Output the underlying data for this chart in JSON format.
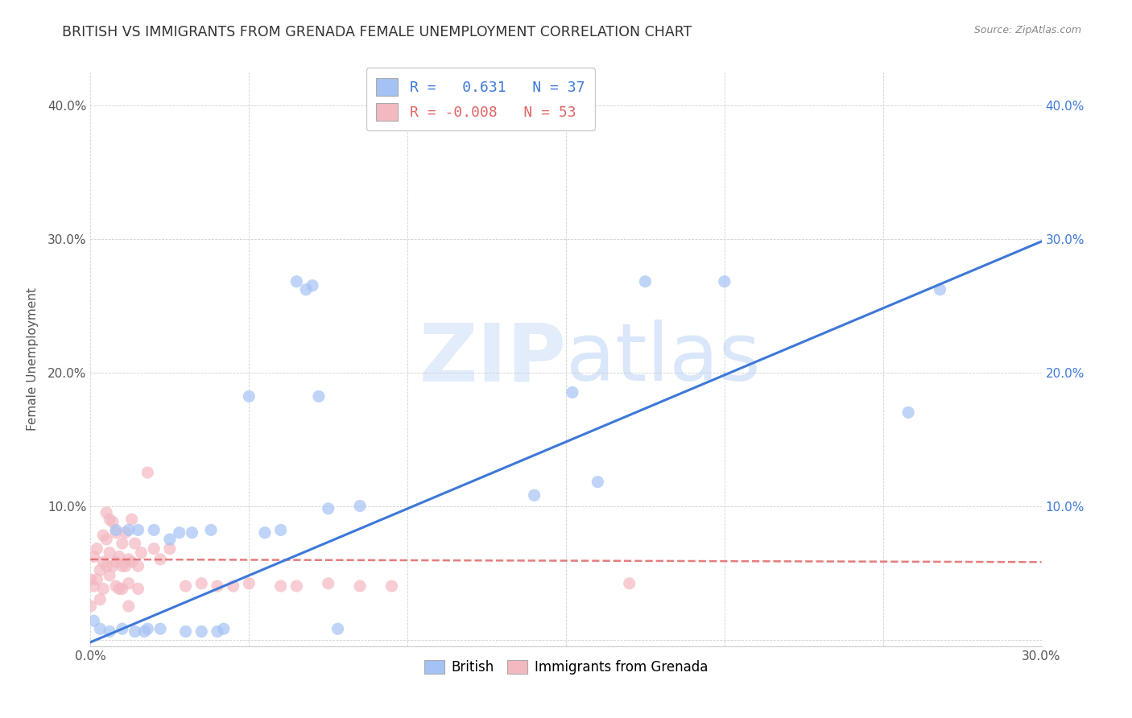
{
  "title": "BRITISH VS IMMIGRANTS FROM GRENADA FEMALE UNEMPLOYMENT CORRELATION CHART",
  "source": "Source: ZipAtlas.com",
  "ylabel": "Female Unemployment",
  "xlim": [
    0.0,
    0.3
  ],
  "ylim": [
    -0.005,
    0.425
  ],
  "british_color": "#a4c2f4",
  "grenada_color": "#f4b8c1",
  "british_line_color": "#3d78d8",
  "grenada_line_color": "#e06666",
  "watermark_color": "#c9daf8",
  "legend_r_british": "0.631",
  "legend_n_british": "37",
  "legend_r_grenada": "-0.008",
  "legend_n_grenada": "53",
  "british_x": [
    0.001,
    0.003,
    0.006,
    0.008,
    0.01,
    0.012,
    0.014,
    0.015,
    0.017,
    0.018,
    0.02,
    0.022,
    0.025,
    0.028,
    0.03,
    0.032,
    0.035,
    0.038,
    0.04,
    0.042,
    0.05,
    0.055,
    0.06,
    0.065,
    0.068,
    0.07,
    0.072,
    0.075,
    0.078,
    0.085,
    0.14,
    0.152,
    0.16,
    0.175,
    0.2,
    0.258,
    0.268
  ],
  "british_y": [
    0.014,
    0.008,
    0.006,
    0.082,
    0.008,
    0.082,
    0.006,
    0.082,
    0.006,
    0.008,
    0.082,
    0.008,
    0.075,
    0.08,
    0.006,
    0.08,
    0.006,
    0.082,
    0.006,
    0.008,
    0.182,
    0.08,
    0.082,
    0.268,
    0.262,
    0.265,
    0.182,
    0.098,
    0.008,
    0.1,
    0.108,
    0.185,
    0.118,
    0.268,
    0.268,
    0.17,
    0.262
  ],
  "grenada_x": [
    0.0,
    0.0,
    0.001,
    0.001,
    0.002,
    0.002,
    0.003,
    0.003,
    0.004,
    0.004,
    0.004,
    0.005,
    0.005,
    0.005,
    0.006,
    0.006,
    0.006,
    0.007,
    0.007,
    0.008,
    0.008,
    0.008,
    0.009,
    0.009,
    0.01,
    0.01,
    0.01,
    0.011,
    0.011,
    0.012,
    0.012,
    0.012,
    0.013,
    0.013,
    0.014,
    0.015,
    0.015,
    0.016,
    0.018,
    0.02,
    0.022,
    0.025,
    0.03,
    0.035,
    0.04,
    0.045,
    0.05,
    0.06,
    0.065,
    0.075,
    0.085,
    0.095,
    0.17
  ],
  "grenada_y": [
    0.045,
    0.025,
    0.062,
    0.04,
    0.068,
    0.045,
    0.052,
    0.03,
    0.078,
    0.058,
    0.038,
    0.095,
    0.075,
    0.055,
    0.09,
    0.065,
    0.048,
    0.088,
    0.055,
    0.08,
    0.058,
    0.04,
    0.062,
    0.038,
    0.072,
    0.055,
    0.038,
    0.08,
    0.055,
    0.06,
    0.042,
    0.025,
    0.09,
    0.058,
    0.072,
    0.055,
    0.038,
    0.065,
    0.125,
    0.068,
    0.06,
    0.068,
    0.04,
    0.042,
    0.04,
    0.04,
    0.042,
    0.04,
    0.04,
    0.042,
    0.04,
    0.04,
    0.042
  ],
  "british_line_x": [
    0.0,
    0.3
  ],
  "british_line_y": [
    -0.002,
    0.298
  ],
  "grenada_line_x": [
    0.0,
    0.3
  ],
  "grenada_line_y": [
    0.06,
    0.058
  ]
}
